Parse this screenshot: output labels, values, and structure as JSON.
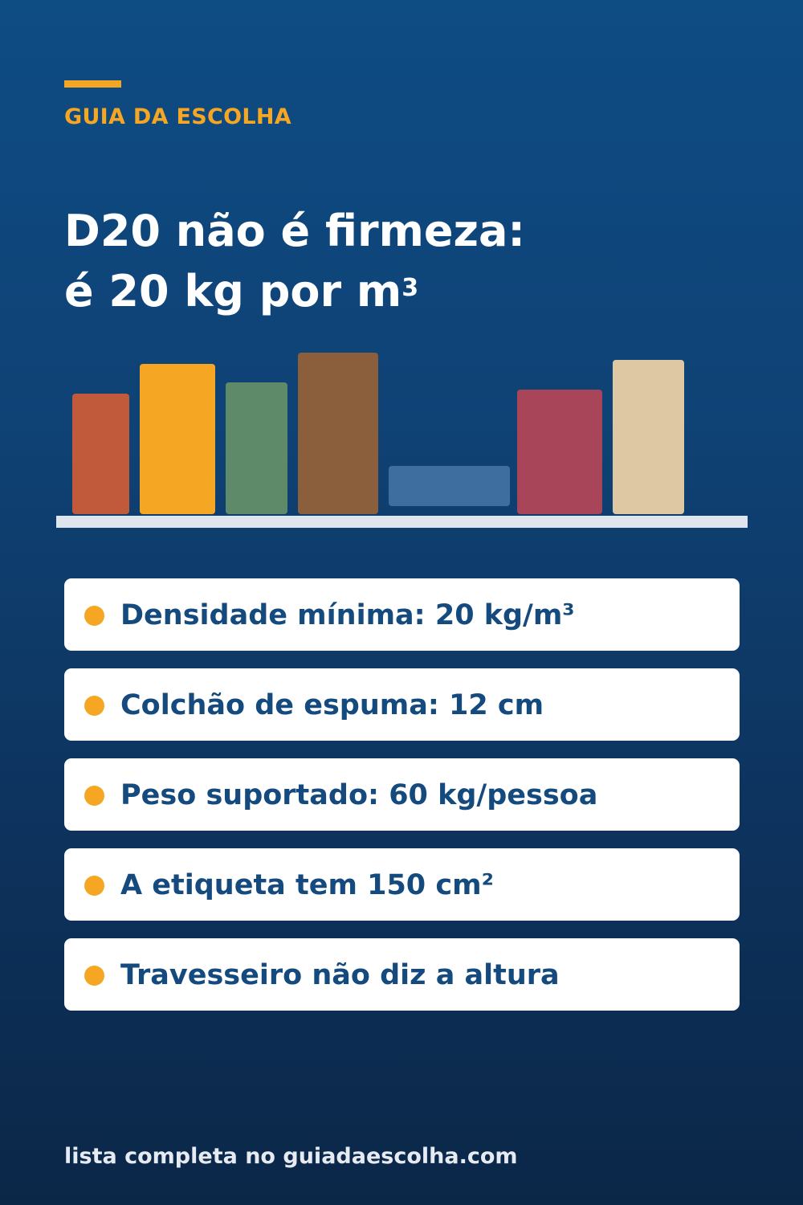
{
  "header": {
    "kicker": "GUIA DA ESCOLHA",
    "title_line1": "D20 não é firmeza:",
    "title_line2": "é 20 kg por m",
    "title_superscript": "3"
  },
  "illustration": {
    "block_colors": [
      "#c05a3b",
      "#f5a623",
      "#5e8a6a",
      "#8b5e3c",
      "#3e6ea0",
      "#a84559",
      "#ddc8a3"
    ],
    "shelf_color": "#dfe5ee"
  },
  "items": [
    {
      "text": "Densidade mínima: 20 kg/m³",
      "icon": "bullet-icon"
    },
    {
      "text": "Colchão de espuma: 12 cm",
      "icon": "bullet-icon"
    },
    {
      "text": "Peso suportado: 60 kg/pessoa",
      "icon": "bullet-icon"
    },
    {
      "text": "A etiqueta tem 150 cm²",
      "icon": "bullet-icon"
    },
    {
      "text": "Travesseiro não diz a altura",
      "icon": "bullet-icon"
    }
  ],
  "footer": {
    "text": "lista completa no guiadaescolha.com"
  },
  "colors": {
    "accent": "#f5a623",
    "background_top": "#0e4c84",
    "background_bottom": "#0b2748",
    "item_text": "#144a7e"
  }
}
